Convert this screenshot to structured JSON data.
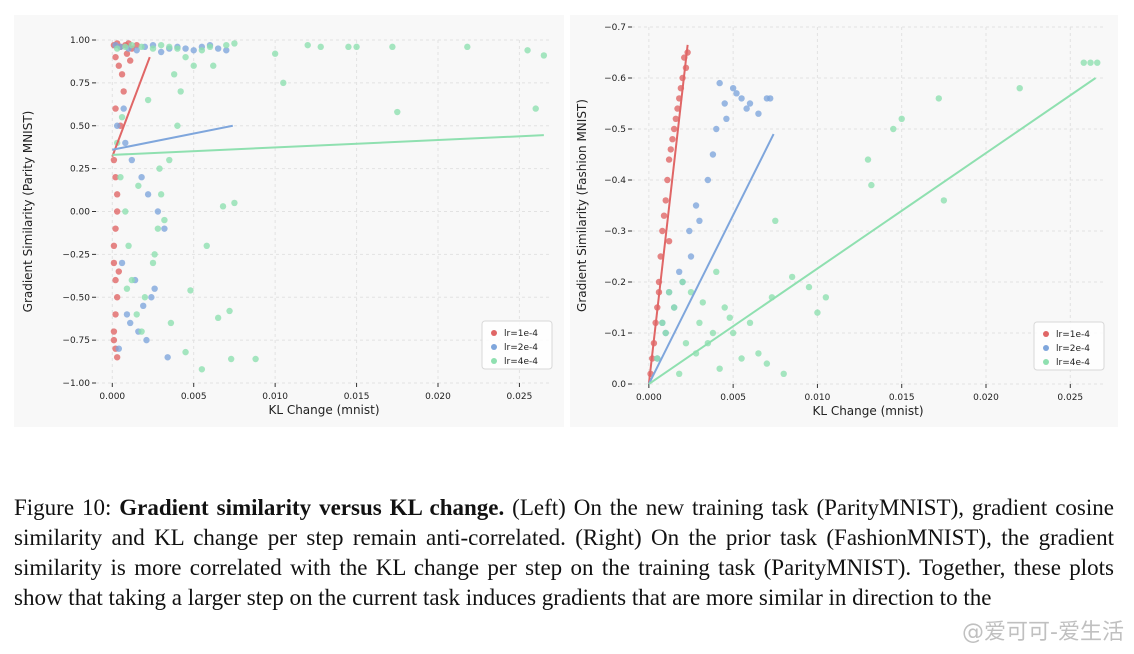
{
  "chart_data": [
    {
      "type": "scatter",
      "title": "",
      "xlabel": "KL Change (mnist)",
      "ylabel": "Gradient Similarity (Parity MNIST)",
      "xlim": [
        -0.001,
        0.027
      ],
      "ylim": [
        -1.0,
        1.0
      ],
      "y_inverted": false,
      "xticks": [
        0.0,
        0.005,
        0.01,
        0.015,
        0.02,
        0.025
      ],
      "xtick_labels": [
        "0.000",
        "0.005",
        "0.010",
        "0.015",
        "0.020",
        "0.025"
      ],
      "yticks": [
        1.0,
        0.75,
        0.5,
        0.25,
        0.0,
        -0.25,
        -0.5,
        -0.75,
        -1.0
      ],
      "ytick_labels": [
        "1.00",
        "0.75",
        "0.50",
        "0.25",
        "0.00",
        "−0.25",
        "−0.50",
        "−0.75",
        "−1.00"
      ],
      "grid": true,
      "legend_position": "bottom-right",
      "series": [
        {
          "name": "lr=1e-4",
          "color": "#e06666",
          "x": [
            0.0001,
            0.0003,
            0.0005,
            0.0008,
            0.001,
            0.0012,
            0.0015,
            0.0002,
            0.0004,
            0.0006,
            0.0009,
            0.0011,
            0.0002,
            0.0001,
            0.0003,
            0.0002,
            0.0001,
            0.0004,
            0.0003,
            0.0002,
            0.0001,
            0.0002,
            0.0003,
            0.0001,
            0.0002,
            0.0005,
            0.0007,
            0.0002,
            0.0001,
            0.0003
          ],
          "y": [
            0.97,
            0.98,
            0.96,
            0.97,
            0.98,
            0.95,
            0.97,
            0.9,
            0.85,
            0.8,
            0.92,
            0.88,
            0.6,
            0.3,
            0.1,
            -0.1,
            -0.3,
            -0.35,
            -0.5,
            -0.6,
            -0.7,
            -0.8,
            -0.85,
            -0.75,
            -0.4,
            0.5,
            0.7,
            0.2,
            -0.2,
            0.0
          ],
          "trend": {
            "x": [
              0.0,
              0.0023
            ],
            "y": [
              0.32,
              0.9
            ]
          }
        },
        {
          "name": "lr=2e-4",
          "color": "#7fa6dc",
          "x": [
            0.0002,
            0.0005,
            0.001,
            0.0015,
            0.002,
            0.0025,
            0.003,
            0.0035,
            0.004,
            0.0045,
            0.005,
            0.0055,
            0.006,
            0.0065,
            0.007,
            0.0003,
            0.0008,
            0.0012,
            0.0018,
            0.0022,
            0.0028,
            0.0032,
            0.0006,
            0.0014,
            0.0024,
            0.0009,
            0.0016,
            0.0021,
            0.0004,
            0.0011,
            0.0019,
            0.0026,
            0.0034,
            0.0007
          ],
          "y": [
            0.97,
            0.96,
            0.95,
            0.94,
            0.96,
            0.97,
            0.93,
            0.95,
            0.96,
            0.95,
            0.94,
            0.96,
            0.97,
            0.95,
            0.94,
            0.5,
            0.4,
            0.3,
            0.2,
            0.1,
            0.0,
            -0.1,
            -0.3,
            -0.4,
            -0.5,
            -0.6,
            -0.7,
            -0.75,
            -0.8,
            -0.65,
            -0.55,
            -0.45,
            -0.85,
            0.6
          ],
          "trend": {
            "x": [
              0.0,
              0.0074
            ],
            "y": [
              0.36,
              0.5
            ]
          }
        },
        {
          "name": "lr=4e-4",
          "color": "#8fe0b0",
          "x": [
            0.0003,
            0.0008,
            0.0012,
            0.0018,
            0.0025,
            0.003,
            0.0035,
            0.004,
            0.0045,
            0.005,
            0.0055,
            0.006,
            0.007,
            0.0075,
            0.01,
            0.0105,
            0.012,
            0.0128,
            0.0145,
            0.015,
            0.0172,
            0.0218,
            0.0255,
            0.026,
            0.0265,
            0.0175,
            0.0088,
            0.0073,
            0.0075,
            0.0072,
            0.0065,
            0.0058,
            0.0055,
            0.0048,
            0.0045,
            0.0042,
            0.004,
            0.0035,
            0.003,
            0.0028,
            0.0025,
            0.002,
            0.0018,
            0.0015,
            0.0012,
            0.001,
            0.0008,
            0.0005,
            0.0003,
            0.0022,
            0.0038,
            0.0062,
            0.0068,
            0.0032,
            0.0026,
            0.0016,
            0.0009,
            0.0006,
            0.0036,
            0.0029
          ],
          "y": [
            0.95,
            0.96,
            0.97,
            0.96,
            0.95,
            0.97,
            0.96,
            0.95,
            0.9,
            0.85,
            0.94,
            0.96,
            0.97,
            0.98,
            0.92,
            0.75,
            0.97,
            0.96,
            0.96,
            0.96,
            0.96,
            0.96,
            0.94,
            0.6,
            0.91,
            0.58,
            -0.86,
            -0.86,
            0.05,
            -0.58,
            -0.62,
            -0.2,
            -0.92,
            -0.46,
            -0.82,
            0.7,
            0.5,
            0.3,
            0.1,
            -0.1,
            -0.3,
            -0.5,
            -0.7,
            -0.6,
            -0.4,
            -0.2,
            0.0,
            0.2,
            0.4,
            0.65,
            0.8,
            0.85,
            0.03,
            -0.05,
            -0.25,
            0.15,
            -0.45,
            0.55,
            -0.65,
            0.25
          ],
          "trend": {
            "x": [
              0.0,
              0.0265
            ],
            "y": [
              0.33,
              0.445
            ]
          }
        }
      ]
    },
    {
      "type": "scatter",
      "title": "",
      "xlabel": "KL Change (mnist)",
      "ylabel": "Gradient Similarity (Fashion MNIST)",
      "xlim": [
        -0.001,
        0.027
      ],
      "ylim": [
        0.0,
        -0.7
      ],
      "y_inverted": true,
      "xticks": [
        0.0,
        0.005,
        0.01,
        0.015,
        0.02,
        0.025
      ],
      "xtick_labels": [
        "0.000",
        "0.005",
        "0.010",
        "0.015",
        "0.020",
        "0.025"
      ],
      "yticks": [
        -0.7,
        -0.6,
        -0.5,
        -0.4,
        -0.3,
        -0.2,
        -0.1,
        0.0
      ],
      "ytick_labels": [
        "−0.7",
        "−0.6",
        "−0.5",
        "−0.4",
        "−0.3",
        "−0.2",
        "−0.1",
        "0.0"
      ],
      "grid": true,
      "legend_position": "bottom-right",
      "series": [
        {
          "name": "lr=1e-4",
          "color": "#e06666",
          "x": [
            0.0002,
            0.0004,
            0.0006,
            0.0008,
            0.001,
            0.0012,
            0.0014,
            0.0016,
            0.0018,
            0.002,
            0.0022,
            0.0023,
            0.0019,
            0.0015,
            0.0011,
            0.0007,
            0.0005,
            0.0003,
            0.0009,
            0.0013,
            0.0017,
            0.0021,
            0.0001,
            0.0006,
            0.0012
          ],
          "y": [
            -0.05,
            -0.12,
            -0.2,
            -0.3,
            -0.36,
            -0.44,
            -0.48,
            -0.52,
            -0.56,
            -0.6,
            -0.62,
            -0.65,
            -0.58,
            -0.5,
            -0.4,
            -0.25,
            -0.15,
            -0.08,
            -0.33,
            -0.46,
            -0.54,
            -0.64,
            -0.02,
            -0.18,
            -0.28
          ],
          "trend": {
            "x": [
              0.0,
              0.0023
            ],
            "y": [
              0.0,
              -0.665
            ]
          }
        },
        {
          "name": "lr=2e-4",
          "color": "#7fa6dc",
          "x": [
            0.0005,
            0.001,
            0.0015,
            0.002,
            0.0025,
            0.003,
            0.0035,
            0.004,
            0.0045,
            0.005,
            0.0055,
            0.006,
            0.0065,
            0.007,
            0.0072,
            0.0042,
            0.0038,
            0.0028,
            0.0024,
            0.0018,
            0.0012,
            0.0008,
            0.0046,
            0.0052,
            0.0058
          ],
          "y": [
            -0.05,
            -0.1,
            -0.15,
            -0.2,
            -0.25,
            -0.32,
            -0.4,
            -0.5,
            -0.55,
            -0.58,
            -0.56,
            -0.55,
            -0.53,
            -0.56,
            -0.56,
            -0.59,
            -0.45,
            -0.35,
            -0.3,
            -0.22,
            -0.18,
            -0.12,
            -0.52,
            -0.57,
            -0.54
          ],
          "trend": {
            "x": [
              0.0,
              0.0074
            ],
            "y": [
              0.0,
              -0.49
            ]
          }
        },
        {
          "name": "lr=4e-4",
          "color": "#8fe0b0",
          "x": [
            0.0005,
            0.001,
            0.0015,
            0.002,
            0.0025,
            0.003,
            0.0035,
            0.004,
            0.0045,
            0.005,
            0.0055,
            0.006,
            0.0065,
            0.007,
            0.0075,
            0.008,
            0.0085,
            0.0095,
            0.01,
            0.0105,
            0.013,
            0.0132,
            0.0145,
            0.015,
            0.0175,
            0.0172,
            0.022,
            0.0258,
            0.0262,
            0.0266,
            0.0073,
            0.0048,
            0.0038,
            0.0028,
            0.0018,
            0.0012,
            0.0008,
            0.0022,
            0.0032,
            0.0042
          ],
          "y": [
            -0.05,
            -0.1,
            -0.15,
            -0.2,
            -0.18,
            -0.12,
            -0.08,
            -0.22,
            -0.15,
            -0.1,
            -0.05,
            -0.12,
            -0.06,
            -0.04,
            -0.32,
            -0.02,
            -0.21,
            -0.19,
            -0.14,
            -0.17,
            -0.44,
            -0.39,
            -0.5,
            -0.52,
            -0.36,
            -0.56,
            -0.58,
            -0.63,
            -0.63,
            -0.63,
            -0.17,
            -0.13,
            -0.1,
            -0.06,
            -0.02,
            -0.18,
            -0.12,
            -0.08,
            -0.16,
            -0.03
          ],
          "trend": {
            "x": [
              0.0,
              0.0265
            ],
            "y": [
              0.0,
              -0.6
            ]
          }
        }
      ]
    }
  ],
  "caption": {
    "prefix": "Figure 10: ",
    "bold": "Gradient similarity versus KL change.",
    "rest": " (Left) On the new training task (ParityMNIST), gradient cosine similarity and KL change per step remain anti-correlated. (Right) On the prior task (FashionMNIST), the gradient similarity is more correlated with the KL change per step on the training task (ParityMNIST). Together, these plots show that taking a larger step on the current task induces gradients that are more similar in direction to the"
  },
  "watermark": "@爱可可-爱生活"
}
